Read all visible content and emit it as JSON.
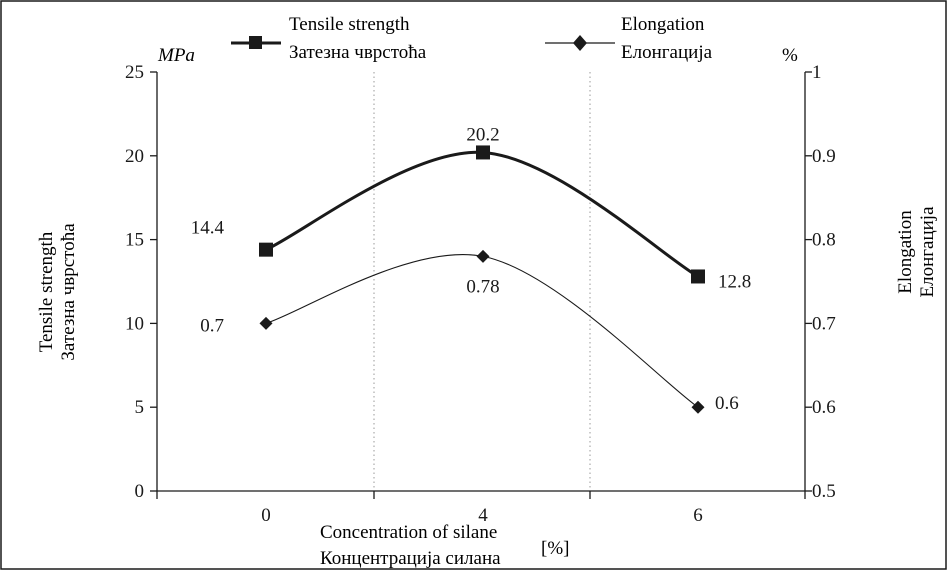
{
  "chart_data": {
    "type": "line",
    "categories": [
      "0",
      "4",
      "6"
    ],
    "series": [
      {
        "name": "Tensile strength / Затезна чврстоћа",
        "axis": "left",
        "marker": "square",
        "values": [
          14.4,
          20.2,
          12.8
        ],
        "data_labels": [
          "14.4",
          "20.2",
          "12.8"
        ],
        "line_weight": "thick"
      },
      {
        "name": "Elongation / Елонгација",
        "axis": "right",
        "marker": "diamond",
        "values": [
          0.7,
          0.78,
          0.6
        ],
        "data_labels": [
          "0.7",
          "0.78",
          "0.6"
        ],
        "line_weight": "thin"
      }
    ],
    "legend": {
      "position": "top",
      "entries": [
        {
          "line1": "Tensile strength",
          "line2": "Затезна чврстоћа"
        },
        {
          "line1": "Elongation",
          "line2": "Елонгација"
        }
      ]
    },
    "left_axis": {
      "unit": "MPa",
      "title_line1": "Tensile strength",
      "title_line2": "Затезна чврстоћа",
      "ylim": [
        0,
        25
      ],
      "ticks": [
        "0",
        "5",
        "10",
        "15",
        "20",
        "25"
      ]
    },
    "right_axis": {
      "unit": "%",
      "title_line1": "Elongation",
      "title_line2": "Елонгација",
      "ylim": [
        0.5,
        1
      ],
      "ticks": [
        "0.5",
        "0.6",
        "0.7",
        "0.8",
        "0.9",
        "1"
      ]
    },
    "x_axis": {
      "title_line1": "Concentration of silane",
      "title_line2": "Концентрација силана",
      "unit": "[%]"
    },
    "grid": "vertical dotted",
    "colors": {
      "line": "#1a1a1a",
      "grid": "#9a9a9a",
      "border": "#1a1a1a"
    }
  }
}
